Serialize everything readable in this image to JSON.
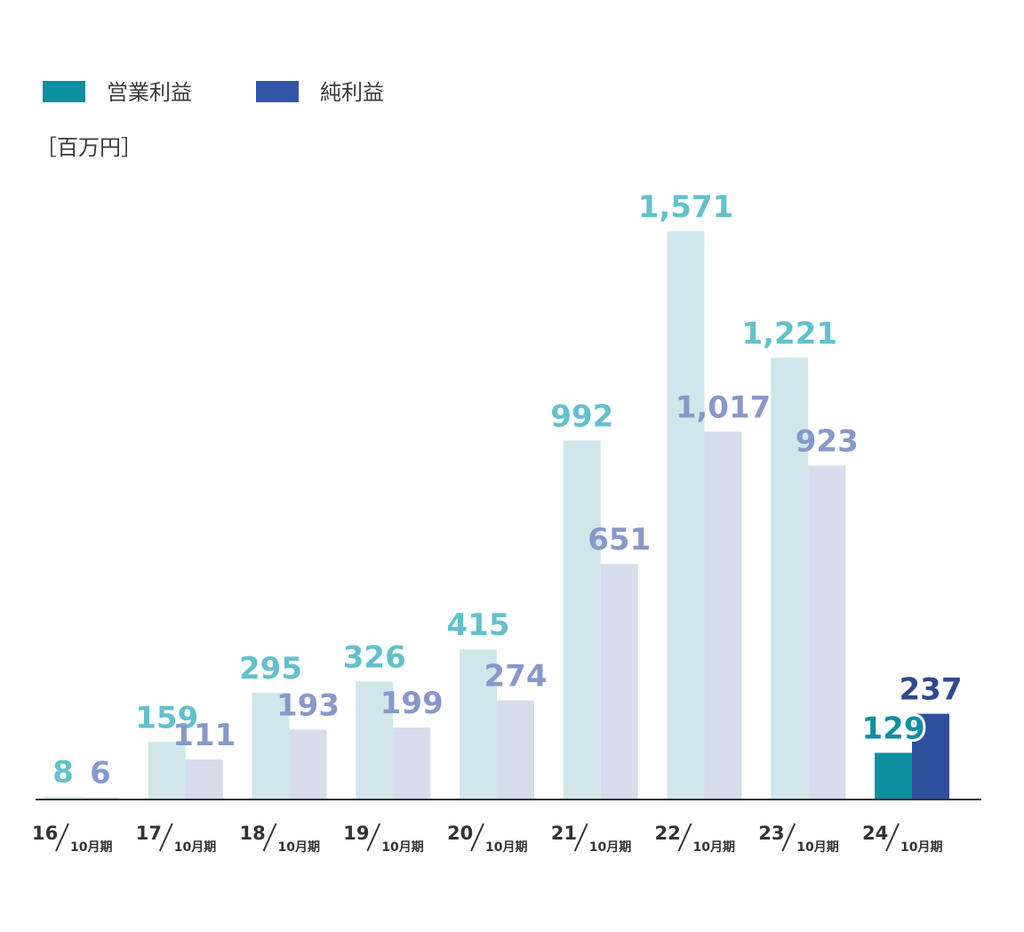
{
  "chart_data": {
    "type": "bar",
    "title": "",
    "unit": "［百万円］",
    "ylim": [
      0,
      1571
    ],
    "grid": false,
    "legend_position": "top-left",
    "categories": [
      {
        "year": "16",
        "period": "10月期"
      },
      {
        "year": "17",
        "period": "10月期"
      },
      {
        "year": "18",
        "period": "10月期"
      },
      {
        "year": "19",
        "period": "10月期"
      },
      {
        "year": "20",
        "period": "10月期"
      },
      {
        "year": "21",
        "period": "10月期"
      },
      {
        "year": "22",
        "period": "10月期"
      },
      {
        "year": "23",
        "period": "10月期"
      },
      {
        "year": "24",
        "period": "10月期"
      }
    ],
    "series": [
      {
        "name": "営業利益",
        "legend_color": "#0e8fa0",
        "values": [
          8,
          159,
          295,
          326,
          415,
          992,
          1571,
          1221,
          129
        ],
        "labels": [
          "8",
          "159",
          "295",
          "326",
          "415",
          "992",
          "1,571",
          "1,221",
          "129"
        ]
      },
      {
        "name": "純利益",
        "legend_color": "#3355a6",
        "values": [
          6,
          111,
          193,
          199,
          274,
          651,
          1017,
          923,
          237
        ],
        "labels": [
          "6",
          "111",
          "193",
          "199",
          "274",
          "651",
          "1,017",
          "923",
          "237"
        ]
      }
    ],
    "colors": {
      "operating_past_bar": "#cfe7ea",
      "operating_past_label": "#62c1cc",
      "operating_current_bar": "#0e8fa0",
      "operating_current_label": "#0e8fa0",
      "net_past_bar": "#d7dded",
      "net_past_label": "#8898cc",
      "net_current_bar": "#2f4f9c",
      "net_current_label": "#2d4a8e",
      "axis": "#333333"
    },
    "highlight_index": 8
  }
}
